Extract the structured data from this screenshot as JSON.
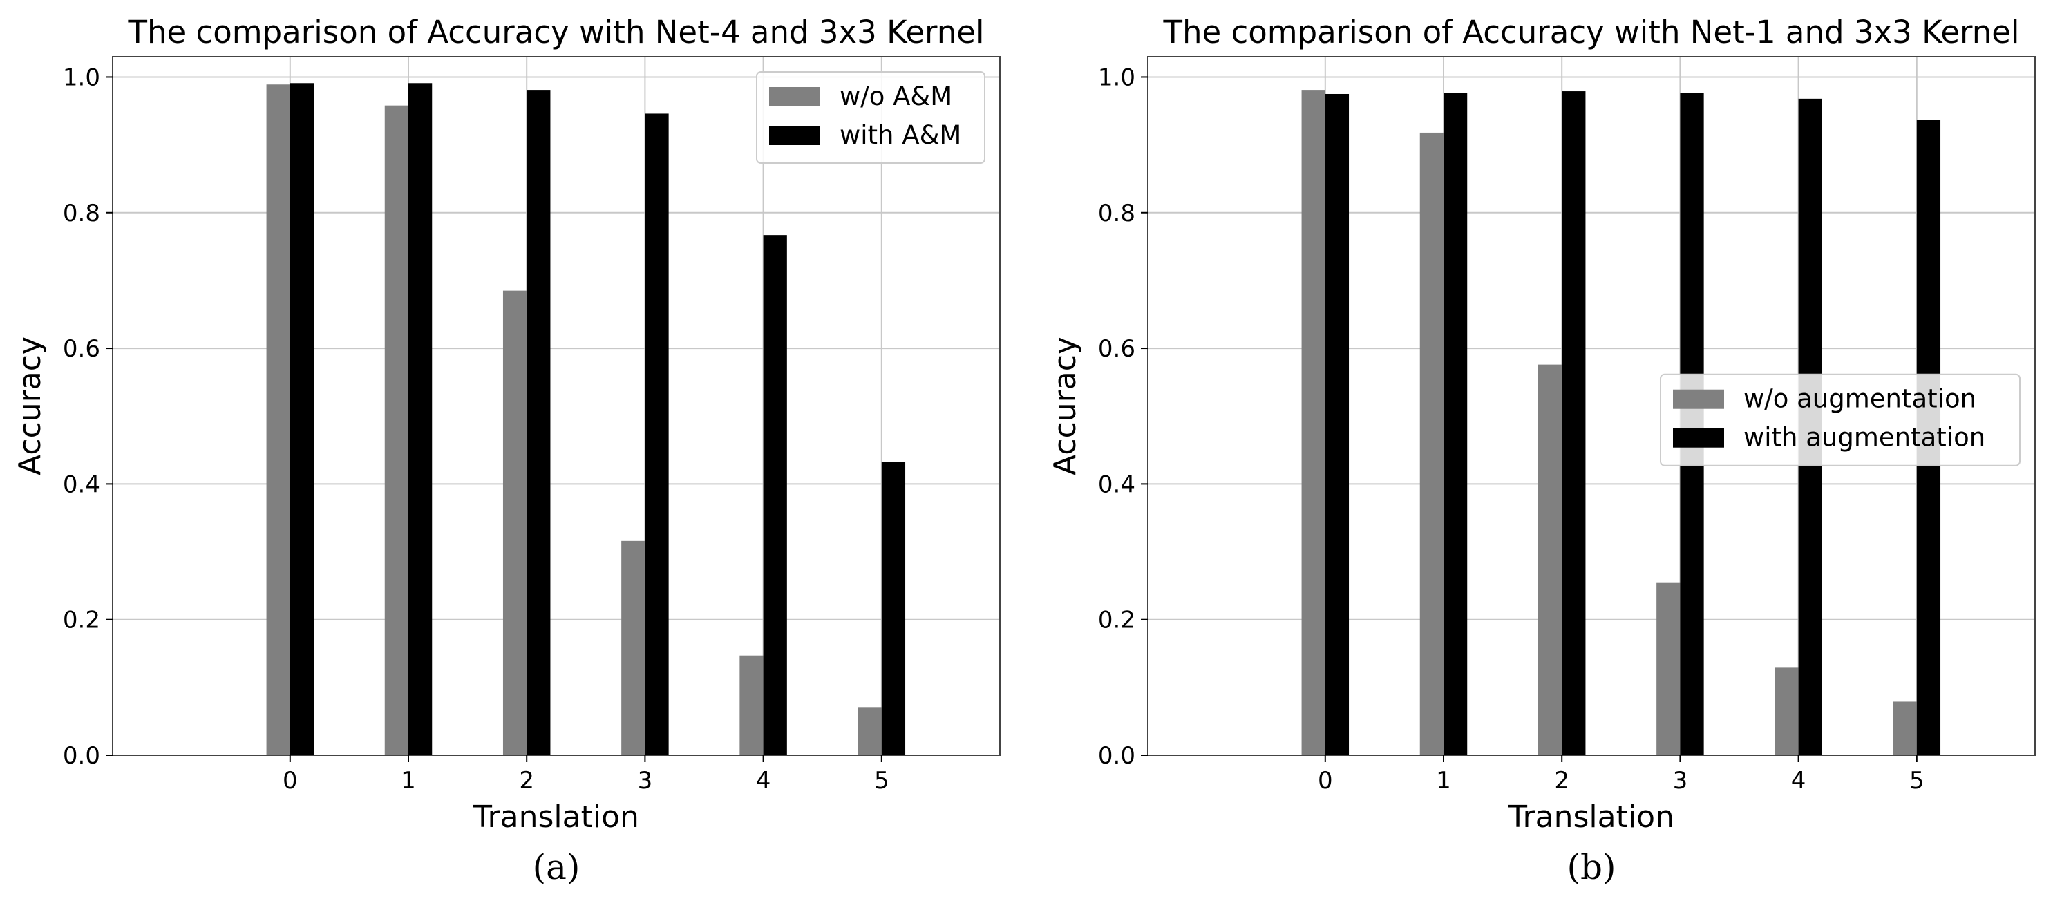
{
  "chart_data": [
    {
      "type": "bar",
      "title": "The comparison of Accuracy with Net-4 and 3x3 Kernel",
      "xlabel": "Translation",
      "ylabel": "Accuracy",
      "caption": "(a)",
      "categories": [
        "0",
        "1",
        "2",
        "3",
        "4",
        "5"
      ],
      "yticks": [
        "0.0",
        "0.2",
        "0.4",
        "0.6",
        "0.8",
        "1.0"
      ],
      "ylim": [
        0,
        1.03
      ],
      "xlim": [
        -1.5,
        6
      ],
      "grid": true,
      "legend_position": "top-right",
      "series": [
        {
          "name": "w/o A&M",
          "color": "#808080",
          "values": [
            0.989,
            0.958,
            0.685,
            0.316,
            0.147,
            0.071
          ]
        },
        {
          "name": "with A&M",
          "color": "#000000",
          "values": [
            0.991,
            0.991,
            0.981,
            0.946,
            0.767,
            0.432
          ]
        }
      ]
    },
    {
      "type": "bar",
      "title": "The comparison of Accuracy with Net-1 and 3x3 Kernel",
      "xlabel": "Translation",
      "ylabel": "Accuracy",
      "caption": "(b)",
      "categories": [
        "0",
        "1",
        "2",
        "3",
        "4",
        "5"
      ],
      "yticks": [
        "0.0",
        "0.2",
        "0.4",
        "0.6",
        "0.8",
        "1.0"
      ],
      "ylim": [
        0,
        1.03
      ],
      "xlim": [
        -1.5,
        6
      ],
      "grid": true,
      "legend_position": "center-right",
      "series": [
        {
          "name": "w/o augmentation",
          "color": "#808080",
          "values": [
            0.981,
            0.918,
            0.576,
            0.254,
            0.129,
            0.079
          ]
        },
        {
          "name": "with augmentation",
          "color": "#000000",
          "values": [
            0.975,
            0.976,
            0.979,
            0.976,
            0.968,
            0.937
          ]
        }
      ]
    }
  ]
}
